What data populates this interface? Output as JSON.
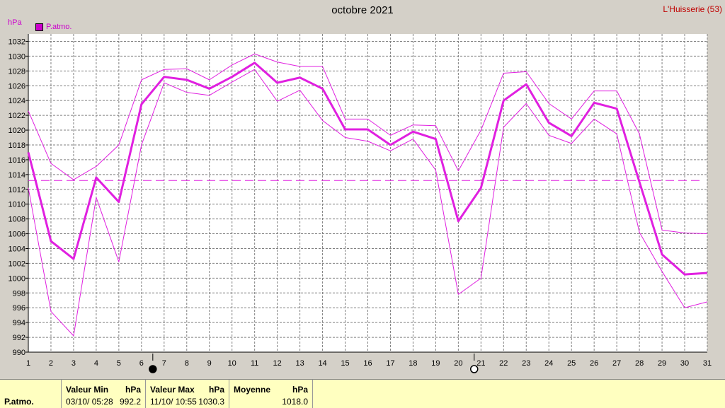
{
  "chart_data": {
    "type": "line",
    "title": "octobre 2021",
    "station": "L'Huisserie (53)",
    "ylabel": "hPa",
    "ylim": [
      990,
      1033
    ],
    "yticks": [
      990,
      992,
      994,
      996,
      998,
      1000,
      1002,
      1004,
      1006,
      1008,
      1010,
      1012,
      1014,
      1016,
      1018,
      1020,
      1022,
      1024,
      1026,
      1028,
      1030,
      1032
    ],
    "x": [
      1,
      2,
      3,
      4,
      5,
      6,
      7,
      8,
      9,
      10,
      11,
      12,
      13,
      14,
      15,
      16,
      17,
      18,
      19,
      20,
      21,
      22,
      23,
      24,
      25,
      26,
      27,
      28,
      29,
      30,
      31
    ],
    "mean_line": 1013.2,
    "legend": "P.atmo.",
    "series": [
      {
        "name": "P.atmo.",
        "role": "mean",
        "values": [
          1017.0,
          1005.0,
          1002.6,
          1013.6,
          1010.3,
          1023.5,
          1027.2,
          1026.8,
          1025.6,
          1027.2,
          1029.1,
          1026.4,
          1027.1,
          1025.6,
          1020.1,
          1020.1,
          1018.0,
          1019.8,
          1018.8,
          1007.7,
          1012.2,
          1024.0,
          1026.2,
          1021.0,
          1019.2,
          1023.7,
          1022.9,
          1013.0,
          1003.2,
          1000.5,
          1000.7
        ]
      },
      {
        "role": "max",
        "values": [
          1022.6,
          1015.5,
          1013.3,
          1015.1,
          1018.0,
          1026.8,
          1028.2,
          1028.3,
          1026.8,
          1028.8,
          1030.3,
          1029.2,
          1028.6,
          1028.6,
          1021.5,
          1021.5,
          1019.3,
          1020.7,
          1020.6,
          1014.5,
          1020.0,
          1027.7,
          1027.9,
          1023.6,
          1021.5,
          1025.3,
          1025.3,
          1019.5,
          1006.5,
          1006.1,
          1006.0
        ]
      },
      {
        "role": "min",
        "values": [
          1012.2,
          995.5,
          992.2,
          1010.9,
          1002.2,
          1018.0,
          1026.4,
          1025.1,
          1024.7,
          1026.5,
          1028.2,
          1023.9,
          1025.4,
          1021.3,
          1019.0,
          1018.5,
          1017.2,
          1018.8,
          1014.6,
          997.8,
          1000.0,
          1020.4,
          1023.6,
          1019.3,
          1018.2,
          1021.5,
          1019.5,
          1006.2,
          1000.9,
          996.0,
          996.8
        ]
      }
    ],
    "moon_phases": [
      {
        "day": 6.5,
        "phase": "new"
      },
      {
        "day": 20.7,
        "phase": "full"
      }
    ],
    "colors": {
      "series": "#e020e0",
      "grid": "#808080",
      "background": "#ffffff"
    }
  },
  "footer": {
    "param": "P.atmo.",
    "min_label": "Valeur Min",
    "min_unit": "hPa",
    "min_time": "03/10/  05:28",
    "min_value": "992.2",
    "max_label": "Valeur Max",
    "max_unit": "hPa",
    "max_time": "11/10/  10:55",
    "max_value": "1030.3",
    "mean_label": "Moyenne",
    "mean_unit": "hPa",
    "mean_value": "1018.0"
  }
}
